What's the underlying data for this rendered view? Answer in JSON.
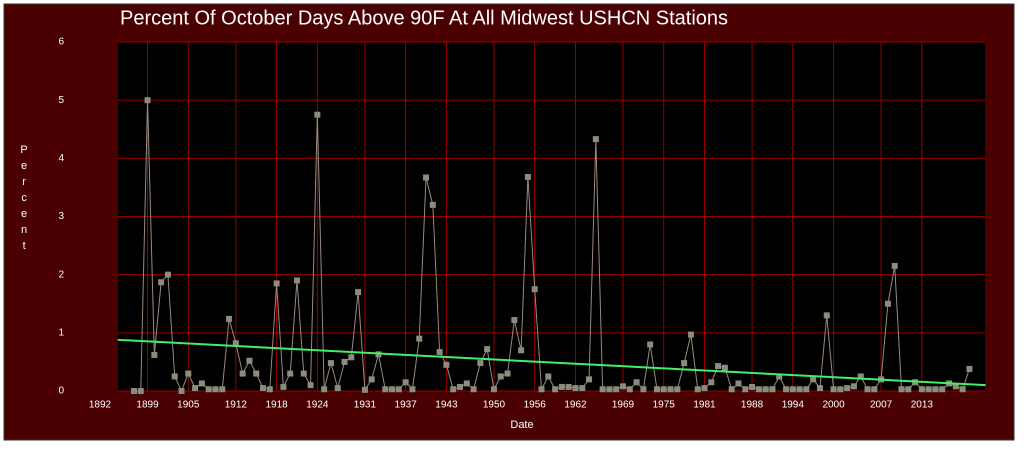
{
  "chart_data": {
    "type": "line",
    "title": "Percent Of October Days Above 90F At All Midwest USHCN Stations",
    "x_label": "Date",
    "y_label": "Percent",
    "x": [
      1897,
      1898,
      1899,
      1900,
      1901,
      1902,
      1903,
      1904,
      1905,
      1906,
      1907,
      1908,
      1909,
      1910,
      1911,
      1912,
      1913,
      1914,
      1915,
      1916,
      1917,
      1918,
      1919,
      1920,
      1921,
      1922,
      1923,
      1924,
      1925,
      1926,
      1927,
      1928,
      1929,
      1930,
      1931,
      1932,
      1933,
      1934,
      1935,
      1936,
      1937,
      1938,
      1939,
      1940,
      1941,
      1942,
      1943,
      1944,
      1945,
      1946,
      1947,
      1948,
      1949,
      1950,
      1951,
      1952,
      1953,
      1954,
      1955,
      1956,
      1957,
      1958,
      1959,
      1960,
      1961,
      1962,
      1963,
      1964,
      1965,
      1966,
      1967,
      1968,
      1969,
      1970,
      1971,
      1972,
      1973,
      1974,
      1975,
      1976,
      1977,
      1978,
      1979,
      1980,
      1981,
      1982,
      1983,
      1984,
      1985,
      1986,
      1987,
      1988,
      1989,
      1990,
      1991,
      1992,
      1993,
      1994,
      1995,
      1996,
      1997,
      1998,
      1999,
      2000,
      2001,
      2002,
      2003,
      2004,
      2005,
      2006,
      2007,
      2008,
      2009,
      2010,
      2011,
      2012,
      2013,
      2014,
      2015,
      2016,
      2017,
      2018,
      2019,
      2020
    ],
    "series": [
      {
        "name": "Percent",
        "color": "#8c8c7c",
        "values": [
          0,
          0,
          5.0,
          0.62,
          1.87,
          2.0,
          0.25,
          0,
          0.3,
          0.05,
          0.13,
          0.03,
          0.03,
          0.03,
          1.24,
          0.82,
          0.3,
          0.52,
          0.3,
          0.05,
          0.03,
          1.85,
          0.07,
          0.3,
          1.9,
          0.3,
          0.1,
          4.75,
          0.03,
          0.48,
          0.05,
          0.5,
          0.58,
          1.7,
          0.02,
          0.2,
          0.63,
          0.03,
          0.03,
          0.03,
          0.15,
          0.03,
          0.9,
          3.67,
          3.2,
          0.67,
          0.45,
          0.03,
          0.07,
          0.13,
          0.03,
          0.48,
          0.72,
          0.03,
          0.25,
          0.3,
          1.22,
          0.7,
          3.68,
          1.75,
          0.03,
          0.25,
          0.03,
          0.07,
          0.07,
          0.05,
          0.05,
          0.2,
          4.33,
          0.03,
          0.03,
          0.03,
          0.08,
          0.03,
          0.15,
          0.03,
          0.8,
          0.03,
          0.03,
          0.03,
          0.03,
          0.48,
          0.97,
          0.03,
          0.05,
          0.15,
          0.43,
          0.4,
          0.03,
          0.13,
          0.03,
          0.07,
          0.03,
          0.03,
          0.03,
          0.25,
          0.03,
          0.03,
          0.03,
          0.03,
          0.2,
          0.05,
          1.3,
          0.03,
          0.03,
          0.05,
          0.08,
          0.25,
          0.03,
          0.03,
          0.2,
          1.5,
          2.15,
          0.03,
          0.03,
          0.15,
          0.03,
          0.03,
          0.03,
          0.03,
          0.13,
          0.08,
          0.03,
          0.38
        ]
      }
    ],
    "trendline": {
      "color": "#44ee66",
      "x": [
        1894.6,
        2022.4
      ],
      "values": [
        0.88,
        0.1
      ]
    },
    "xlim": [
      1892,
      2022
    ],
    "ylim": [
      0,
      6
    ],
    "xticks": [
      1892,
      1899,
      1905,
      1912,
      1918,
      1924,
      1931,
      1937,
      1943,
      1950,
      1956,
      1962,
      1969,
      1975,
      1981,
      1988,
      1994,
      2000,
      2007,
      2013
    ],
    "yticks": [
      0,
      1,
      2,
      3,
      4,
      5,
      6
    ],
    "grid": true
  }
}
